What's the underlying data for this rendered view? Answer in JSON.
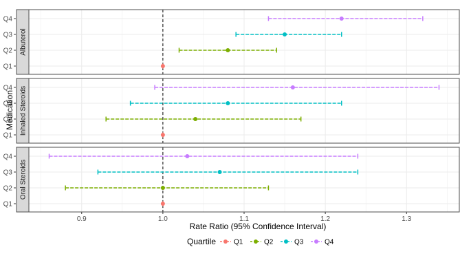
{
  "chart_data": {
    "type": "forest",
    "xlabel": "Rate Ratio (95% Confidence Interval)",
    "ylabel": "Medication",
    "xlim": [
      0.835,
      1.365
    ],
    "x_ticks": [
      0.9,
      1.0,
      1.1,
      1.2,
      1.3
    ],
    "x_tick_labels": [
      "0.9",
      "1.0",
      "1.1",
      "1.2",
      "1.3"
    ],
    "reference_line": 1.0,
    "categories": [
      "Q1",
      "Q2",
      "Q3",
      "Q4"
    ],
    "legend": {
      "title": "Quartile",
      "position": "bottom",
      "items": [
        {
          "label": "Q1",
          "color": "#F8766D"
        },
        {
          "label": "Q2",
          "color": "#7CAE00"
        },
        {
          "label": "Q3",
          "color": "#00BFC4"
        },
        {
          "label": "Q4",
          "color": "#C77CFF"
        }
      ]
    },
    "panels": [
      {
        "name": "Albuterol",
        "rows": [
          {
            "quartile": "Q1",
            "estimate": 1.0,
            "lower": 1.0,
            "upper": 1.0
          },
          {
            "quartile": "Q2",
            "estimate": 1.08,
            "lower": 1.02,
            "upper": 1.14
          },
          {
            "quartile": "Q3",
            "estimate": 1.15,
            "lower": 1.09,
            "upper": 1.22
          },
          {
            "quartile": "Q4",
            "estimate": 1.22,
            "lower": 1.13,
            "upper": 1.32
          }
        ]
      },
      {
        "name": "Inhaled Steroids",
        "rows": [
          {
            "quartile": "Q1",
            "estimate": 1.0,
            "lower": 1.0,
            "upper": 1.0
          },
          {
            "quartile": "Q2",
            "estimate": 1.04,
            "lower": 0.93,
            "upper": 1.17
          },
          {
            "quartile": "Q3",
            "estimate": 1.08,
            "lower": 0.96,
            "upper": 1.22
          },
          {
            "quartile": "Q4",
            "estimate": 1.16,
            "lower": 0.99,
            "upper": 1.34
          }
        ]
      },
      {
        "name": "Oral Steroids",
        "rows": [
          {
            "quartile": "Q1",
            "estimate": 1.0,
            "lower": 1.0,
            "upper": 1.0
          },
          {
            "quartile": "Q2",
            "estimate": 1.0,
            "lower": 0.88,
            "upper": 1.13
          },
          {
            "quartile": "Q3",
            "estimate": 1.07,
            "lower": 0.92,
            "upper": 1.24
          },
          {
            "quartile": "Q4",
            "estimate": 1.03,
            "lower": 0.86,
            "upper": 1.24
          }
        ]
      }
    ],
    "grid": true
  }
}
